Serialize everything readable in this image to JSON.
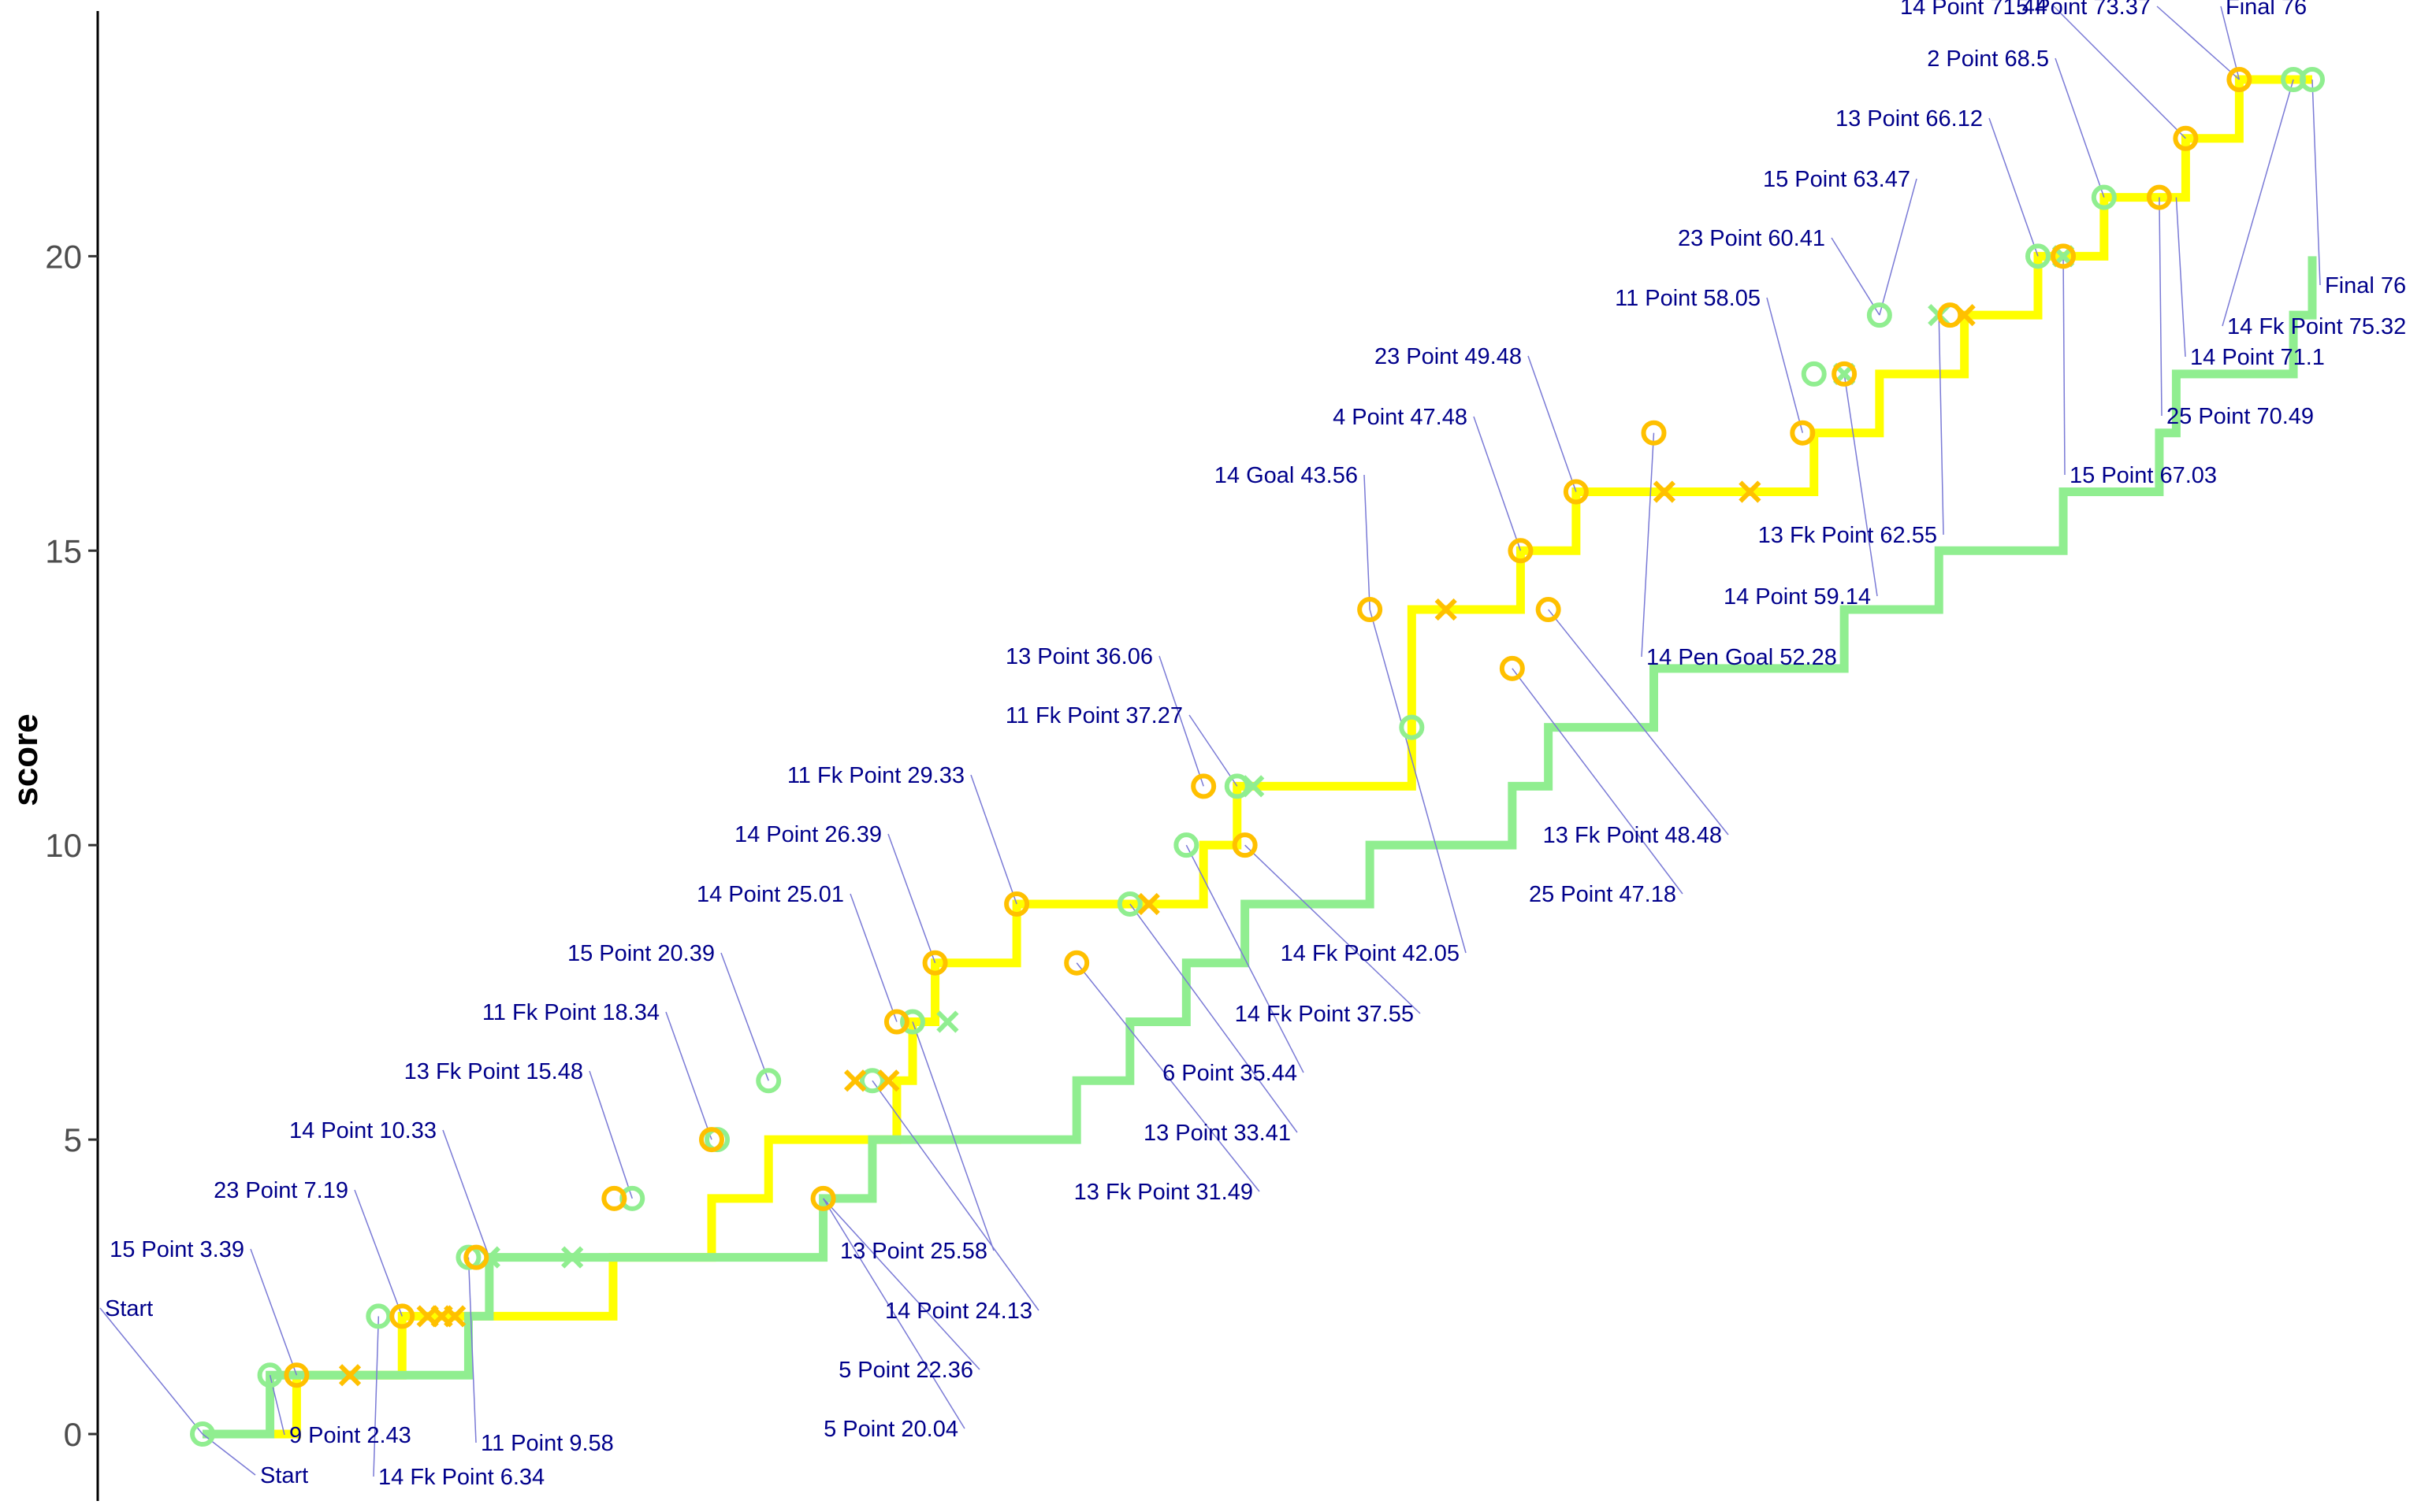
{
  "chart_data": {
    "type": "line",
    "step": true,
    "title": "",
    "xlabel": "",
    "ylabel": "score",
    "ylim": [
      -1.1,
      24.0
    ],
    "xlim": [
      0,
      76
    ],
    "yticks": [
      0,
      5,
      10,
      15,
      20
    ],
    "grid": false,
    "legend": "none",
    "colors": {
      "team_a_line": "#90ee90",
      "team_b_line": "#ffff00",
      "team_a_marker": "#90ee90",
      "team_b_marker": "#ffc000",
      "annotation_text": "#00008b",
      "annotation_line": "#7a7ad6",
      "axis": "#000000",
      "tick": "#4d4d4d"
    },
    "series": [
      {
        "x": [
          0,
          2.43,
          9.58,
          10.33,
          15.48,
          22.36,
          24.13,
          31.49,
          33.41,
          35.44,
          37.55,
          42.05,
          47.18,
          48.48,
          52.28,
          59.14,
          62.55,
          67.03,
          70.49,
          71.1,
          75.32,
          76
        ],
        "y": [
          0,
          1,
          2,
          3,
          3,
          4,
          5,
          6,
          7,
          8,
          9,
          10,
          11,
          12,
          13,
          14,
          15,
          16,
          17,
          18,
          19,
          20
        ]
      },
      {
        "x": [
          0,
          3.39,
          6.34,
          7.19,
          14.79,
          18.34,
          20.39,
          25.01,
          25.58,
          26.39,
          29.33,
          36.06,
          37.27,
          37.85,
          43.56,
          47.48,
          49.48,
          58.05,
          60.41,
          63.47,
          66.12,
          68.5,
          71.44,
          73.37,
          76
        ],
        "y": [
          0,
          1,
          1,
          2,
          3,
          4,
          5,
          6,
          7,
          8,
          9,
          10,
          11,
          11,
          14,
          15,
          16,
          17,
          18,
          19,
          20,
          21,
          22,
          23,
          23
        ]
      }
    ],
    "points": [
      {
        "series": 1,
        "x": 0,
        "y": 0,
        "marker": "circle"
      },
      {
        "series": 1,
        "x": 2.43,
        "y": 1,
        "marker": "circle"
      },
      {
        "series": 1,
        "x": 6.34,
        "y": 2,
        "marker": "circle"
      },
      {
        "series": 1,
        "x": 9.58,
        "y": 3,
        "marker": "circle"
      },
      {
        "series": 1,
        "x": 10.33,
        "y": 3,
        "marker": "cross"
      },
      {
        "series": 1,
        "x": 13.32,
        "y": 3,
        "marker": "cross"
      },
      {
        "series": 1,
        "x": 15.48,
        "y": 4,
        "marker": "circle"
      },
      {
        "series": 1,
        "x": 18.54,
        "y": 5,
        "marker": "circle"
      },
      {
        "series": 1,
        "x": 20.39,
        "y": 6,
        "marker": "circle"
      },
      {
        "series": 1,
        "x": 24.13,
        "y": 6,
        "marker": "circle"
      },
      {
        "series": 1,
        "x": 25.58,
        "y": 7,
        "marker": "circle"
      },
      {
        "series": 1,
        "x": 26.84,
        "y": 7,
        "marker": "cross"
      },
      {
        "series": 1,
        "x": 33.41,
        "y": 9,
        "marker": "circle"
      },
      {
        "series": 1,
        "x": 35.44,
        "y": 10,
        "marker": "circle"
      },
      {
        "series": 1,
        "x": 37.27,
        "y": 11,
        "marker": "circle"
      },
      {
        "series": 1,
        "x": 37.85,
        "y": 11,
        "marker": "cross"
      },
      {
        "series": 1,
        "x": 43.56,
        "y": 12,
        "marker": "circle"
      },
      {
        "series": 1,
        "x": 58.05,
        "y": 18,
        "marker": "circle"
      },
      {
        "series": 1,
        "x": 59.14,
        "y": 18,
        "marker": "cross"
      },
      {
        "series": 1,
        "x": 60.41,
        "y": 19,
        "marker": "circle"
      },
      {
        "series": 1,
        "x": 62.55,
        "y": 19,
        "marker": "cross"
      },
      {
        "series": 1,
        "x": 66.12,
        "y": 20,
        "marker": "circle"
      },
      {
        "series": 1,
        "x": 67.03,
        "y": 20,
        "marker": "cross"
      },
      {
        "series": 1,
        "x": 68.5,
        "y": 21,
        "marker": "circle"
      },
      {
        "series": 1,
        "x": 75.32,
        "y": 23,
        "marker": "circle"
      },
      {
        "series": 1,
        "x": 76,
        "y": 23,
        "marker": "circle"
      },
      {
        "series": 2,
        "x": 3.39,
        "y": 1,
        "marker": "circle"
      },
      {
        "series": 2,
        "x": 5.31,
        "y": 1,
        "marker": "cross"
      },
      {
        "series": 2,
        "x": 7.19,
        "y": 2,
        "marker": "circle"
      },
      {
        "series": 2,
        "x": 8.11,
        "y": 2,
        "marker": "cross"
      },
      {
        "series": 2,
        "x": 8.62,
        "y": 2,
        "marker": "cross"
      },
      {
        "series": 2,
        "x": 9.09,
        "y": 2,
        "marker": "cross"
      },
      {
        "series": 2,
        "x": 9.86,
        "y": 3,
        "marker": "circle"
      },
      {
        "series": 2,
        "x": 14.83,
        "y": 4,
        "marker": "circle"
      },
      {
        "series": 2,
        "x": 18.34,
        "y": 5,
        "marker": "circle"
      },
      {
        "series": 2,
        "x": 22.36,
        "y": 4,
        "marker": "circle"
      },
      {
        "series": 2,
        "x": 23.51,
        "y": 6,
        "marker": "cross"
      },
      {
        "series": 2,
        "x": 24.71,
        "y": 6,
        "marker": "cross"
      },
      {
        "series": 2,
        "x": 25.01,
        "y": 7,
        "marker": "circle"
      },
      {
        "series": 2,
        "x": 26.39,
        "y": 8,
        "marker": "circle"
      },
      {
        "series": 2,
        "x": 29.33,
        "y": 9,
        "marker": "circle"
      },
      {
        "series": 2,
        "x": 31.49,
        "y": 8,
        "marker": "circle"
      },
      {
        "series": 2,
        "x": 34.09,
        "y": 9,
        "marker": "cross"
      },
      {
        "series": 2,
        "x": 36.06,
        "y": 11,
        "marker": "circle"
      },
      {
        "series": 2,
        "x": 37.55,
        "y": 10,
        "marker": "circle"
      },
      {
        "series": 2,
        "x": 42.05,
        "y": 14,
        "marker": "circle"
      },
      {
        "series": 2,
        "x": 44.79,
        "y": 14,
        "marker": "cross"
      },
      {
        "series": 2,
        "x": 47.18,
        "y": 13,
        "marker": "circle"
      },
      {
        "series": 2,
        "x": 47.48,
        "y": 15,
        "marker": "circle"
      },
      {
        "series": 2,
        "x": 48.48,
        "y": 14,
        "marker": "circle"
      },
      {
        "series": 2,
        "x": 49.48,
        "y": 16,
        "marker": "circle"
      },
      {
        "series": 2,
        "x": 52.28,
        "y": 17,
        "marker": "circle"
      },
      {
        "series": 2,
        "x": 52.66,
        "y": 16,
        "marker": "cross"
      },
      {
        "series": 2,
        "x": 55.74,
        "y": 16,
        "marker": "cross"
      },
      {
        "series": 2,
        "x": 57.64,
        "y": 17,
        "marker": "circle"
      },
      {
        "series": 2,
        "x": 59.14,
        "y": 18,
        "marker": "circle"
      },
      {
        "series": 2,
        "x": 62.95,
        "y": 19,
        "marker": "circle"
      },
      {
        "series": 2,
        "x": 63.47,
        "y": 19,
        "marker": "cross"
      },
      {
        "series": 2,
        "x": 67.03,
        "y": 20,
        "marker": "circle"
      },
      {
        "series": 2,
        "x": 70.49,
        "y": 21,
        "marker": "circle"
      },
      {
        "series": 2,
        "x": 71.44,
        "y": 22,
        "marker": "circle"
      },
      {
        "series": 2,
        "x": 73.37,
        "y": 23,
        "marker": "circle"
      }
    ],
    "annotations": [
      {
        "text": "Start",
        "x": 0,
        "y": 0
      },
      {
        "text": "Start",
        "x": 0,
        "y": 0
      },
      {
        "text": "15 Point 3.39",
        "x": 3.39,
        "y": 1
      },
      {
        "text": "9 Point 2.43",
        "x": 2.43,
        "y": 1
      },
      {
        "text": "23 Point 7.19",
        "x": 7.19,
        "y": 2
      },
      {
        "text": "14 Fk Point 6.34",
        "x": 6.34,
        "y": 2
      },
      {
        "text": "14 Point 10.33",
        "x": 10.33,
        "y": 3
      },
      {
        "text": "11 Point 9.58",
        "x": 9.58,
        "y": 3
      },
      {
        "text": "13 Fk Point 15.48",
        "x": 15.48,
        "y": 4
      },
      {
        "text": "11 Fk Point 18.34",
        "x": 18.34,
        "y": 5
      },
      {
        "text": "15 Point 20.39",
        "x": 20.39,
        "y": 6
      },
      {
        "text": "5 Point 20.04",
        "x": 20.04,
        "y": 4
      },
      {
        "text": "5 Point 22.36",
        "x": 22.36,
        "y": 5
      },
      {
        "text": "14 Point 24.13",
        "x": 24.13,
        "y": 6
      },
      {
        "text": "14 Point 25.01",
        "x": 25.01,
        "y": 7
      },
      {
        "text": "13 Point 25.58",
        "x": 25.58,
        "y": 7
      },
      {
        "text": "14 Point 26.39",
        "x": 26.39,
        "y": 8
      },
      {
        "text": "11 Fk Point 29.33",
        "x": 29.33,
        "y": 9
      },
      {
        "text": "13 Fk Point 31.49",
        "x": 31.49,
        "y": 8
      },
      {
        "text": "13 Point 33.41",
        "x": 33.41,
        "y": 9
      },
      {
        "text": "6 Point 35.44",
        "x": 35.44,
        "y": 10
      },
      {
        "text": "13 Point 36.06",
        "x": 36.06,
        "y": 11
      },
      {
        "text": "11 Fk Point 37.27",
        "x": 37.27,
        "y": 11
      },
      {
        "text": "14 Fk Point 37.55",
        "x": 37.55,
        "y": 10
      },
      {
        "text": "14 Fk Point 42.05",
        "x": 42.05,
        "y": 12
      },
      {
        "text": "14 Goal 43.56",
        "x": 43.56,
        "y": 14
      },
      {
        "text": "25 Point 47.18",
        "x": 47.18,
        "y": 13
      },
      {
        "text": "4 Point 47.48",
        "x": 47.48,
        "y": 15
      },
      {
        "text": "13 Fk Point 48.48",
        "x": 48.48,
        "y": 14
      },
      {
        "text": "23 Point 49.48",
        "x": 49.48,
        "y": 16
      },
      {
        "text": "14 Pen Goal 52.28",
        "x": 52.28,
        "y": 17
      },
      {
        "text": "11 Point 58.05",
        "x": 58.05,
        "y": 17
      },
      {
        "text": "14 Point 59.14",
        "x": 59.14,
        "y": 18
      },
      {
        "text": "23 Point 60.41",
        "x": 60.41,
        "y": 18
      },
      {
        "text": "13 Fk Point 62.55",
        "x": 62.55,
        "y": 19
      },
      {
        "text": "15 Point 63.47",
        "x": 63.47,
        "y": 19
      },
      {
        "text": "13 Point 66.12",
        "x": 66.12,
        "y": 20
      },
      {
        "text": "15 Point 67.03",
        "x": 67.03,
        "y": 20
      },
      {
        "text": "2 Point 68.5",
        "x": 68.5,
        "y": 21
      },
      {
        "text": "25 Point 70.49",
        "x": 70.49,
        "y": 21
      },
      {
        "text": "14 Point 71.1",
        "x": 71.1,
        "y": 21
      },
      {
        "text": "14 Point 71.44",
        "x": 71.44,
        "y": 22
      },
      {
        "text": "5 Point 73.37",
        "x": 73.37,
        "y": 23
      },
      {
        "text": "14 Fk Point 75.32",
        "x": 75.32,
        "y": 23
      },
      {
        "text": "Final 76",
        "x": 76,
        "y": 23
      },
      {
        "text": "Final 76",
        "x": 76,
        "y": 23
      }
    ]
  }
}
